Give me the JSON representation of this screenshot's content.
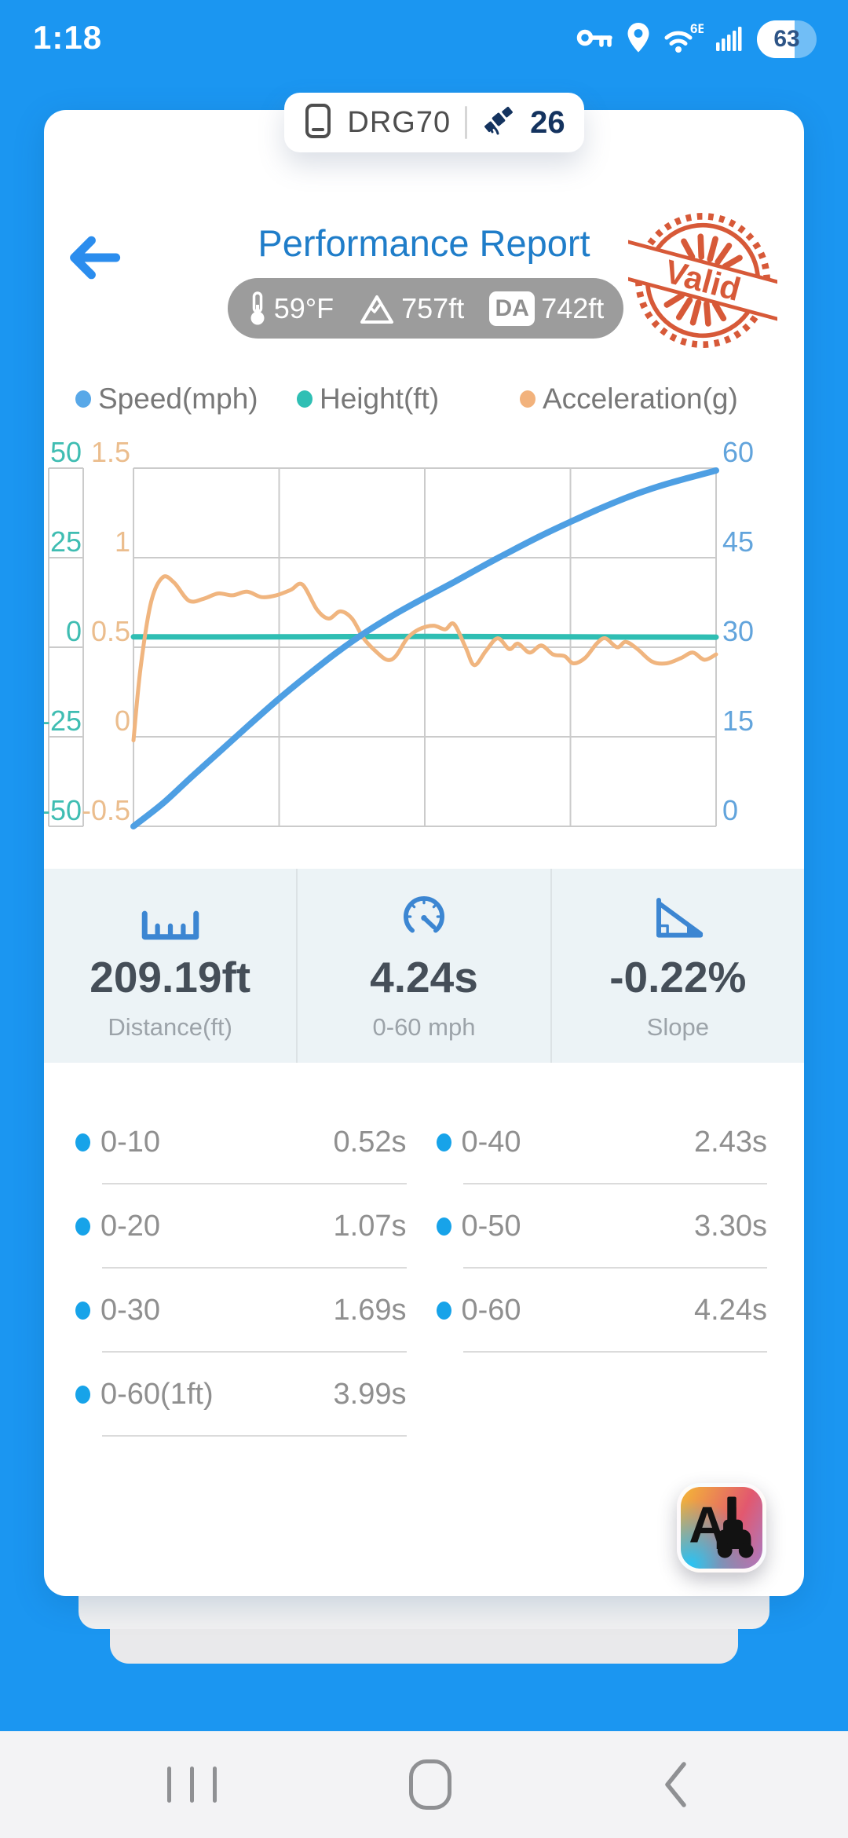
{
  "colors": {
    "background_blue": "#1B96F1",
    "title_blue": "#1f7dc9",
    "speed_blue": "#4E9FE3",
    "height_teal": "#2FBEB3",
    "acceleration_orange": "#F0B57F",
    "stamp_red": "#D5512E",
    "stat_icon_blue": "#3C86D2",
    "bullet_blue": "#17A3E9",
    "grid_gray": "#CBCBCB"
  },
  "status_bar": {
    "time": "1:18",
    "battery_percent": "63",
    "wifi_badge": "6E"
  },
  "device_pill": {
    "device_name": "DRG70",
    "satellite_count": "26"
  },
  "header": {
    "title": "Performance Report",
    "stamp_text": "Valid"
  },
  "conditions": {
    "temperature": "59°F",
    "altitude": "757ft",
    "da_badge": "DA",
    "density_altitude": "742ft"
  },
  "legend": [
    {
      "label": "Speed(mph)",
      "color": "#58A8E8"
    },
    {
      "label": "Height(ft)",
      "color": "#2FBFB4"
    },
    {
      "label": "Acceleration(g)",
      "color": "#F2B27C"
    }
  ],
  "chart_data": {
    "type": "line",
    "title": "",
    "xlabel": "",
    "x_range": [
      0,
      1
    ],
    "x_gridlines": 4,
    "grid": true,
    "axes": {
      "height_left": {
        "color": "#3FBDB2",
        "ticks": [
          50,
          25,
          0,
          -25,
          -50
        ],
        "range": [
          -50,
          50
        ]
      },
      "acceleration_left": {
        "color": "#EBBD8D",
        "ticks": [
          1.5,
          1,
          0.5,
          0,
          -0.5
        ],
        "range": [
          -0.5,
          1.5
        ]
      },
      "speed_right": {
        "color": "#62A4DC",
        "ticks": [
          60,
          45,
          30,
          15,
          0
        ],
        "range": [
          0,
          60
        ]
      }
    },
    "series": [
      {
        "name": "Height(ft)",
        "axis": "height_left",
        "color": "#2FBEB3",
        "width": 7,
        "points": [
          [
            0,
            2.9
          ],
          [
            0.25,
            2.9
          ],
          [
            0.5,
            3.0
          ],
          [
            0.75,
            2.9
          ],
          [
            1,
            2.8
          ]
        ]
      },
      {
        "name": "Acceleration(g)",
        "axis": "acceleration_left",
        "color": "#F0B57F",
        "width": 5,
        "points": [
          [
            0,
            -0.02
          ],
          [
            0.012,
            0.38
          ],
          [
            0.03,
            0.75
          ],
          [
            0.05,
            0.89
          ],
          [
            0.07,
            0.86
          ],
          [
            0.095,
            0.76
          ],
          [
            0.12,
            0.77
          ],
          [
            0.145,
            0.8
          ],
          [
            0.17,
            0.79
          ],
          [
            0.195,
            0.81
          ],
          [
            0.22,
            0.78
          ],
          [
            0.245,
            0.79
          ],
          [
            0.27,
            0.82
          ],
          [
            0.29,
            0.85
          ],
          [
            0.315,
            0.71
          ],
          [
            0.335,
            0.66
          ],
          [
            0.355,
            0.7
          ],
          [
            0.375,
            0.66
          ],
          [
            0.395,
            0.55
          ],
          [
            0.415,
            0.48
          ],
          [
            0.435,
            0.43
          ],
          [
            0.45,
            0.45
          ],
          [
            0.47,
            0.55
          ],
          [
            0.49,
            0.6
          ],
          [
            0.515,
            0.62
          ],
          [
            0.535,
            0.6
          ],
          [
            0.55,
            0.63
          ],
          [
            0.57,
            0.5
          ],
          [
            0.585,
            0.4
          ],
          [
            0.605,
            0.48
          ],
          [
            0.625,
            0.55
          ],
          [
            0.645,
            0.49
          ],
          [
            0.66,
            0.52
          ],
          [
            0.68,
            0.47
          ],
          [
            0.7,
            0.51
          ],
          [
            0.72,
            0.46
          ],
          [
            0.74,
            0.45
          ],
          [
            0.755,
            0.41
          ],
          [
            0.775,
            0.44
          ],
          [
            0.795,
            0.52
          ],
          [
            0.81,
            0.55
          ],
          [
            0.83,
            0.5
          ],
          [
            0.845,
            0.53
          ],
          [
            0.865,
            0.49
          ],
          [
            0.89,
            0.42
          ],
          [
            0.915,
            0.41
          ],
          [
            0.94,
            0.44
          ],
          [
            0.96,
            0.47
          ],
          [
            0.98,
            0.43
          ],
          [
            1,
            0.46
          ]
        ]
      },
      {
        "name": "Speed(mph)",
        "axis": "speed_right",
        "color": "#4E9FE3",
        "width": 8,
        "points": [
          [
            0,
            0
          ],
          [
            0.05,
            3.8
          ],
          [
            0.1,
            8.3
          ],
          [
            0.15,
            12.7
          ],
          [
            0.2,
            17.1
          ],
          [
            0.25,
            21.4
          ],
          [
            0.3,
            25.4
          ],
          [
            0.35,
            29.2
          ],
          [
            0.4,
            32.6
          ],
          [
            0.45,
            35.6
          ],
          [
            0.5,
            38.3
          ],
          [
            0.55,
            40.9
          ],
          [
            0.6,
            43.6
          ],
          [
            0.65,
            46.2
          ],
          [
            0.7,
            48.7
          ],
          [
            0.75,
            51.0
          ],
          [
            0.8,
            53.2
          ],
          [
            0.85,
            55.2
          ],
          [
            0.9,
            56.9
          ],
          [
            0.95,
            58.3
          ],
          [
            1,
            59.6
          ]
        ]
      }
    ]
  },
  "stats": [
    {
      "icon": "ruler-icon",
      "value": "209.19ft",
      "label": "Distance(ft)"
    },
    {
      "icon": "gauge-icon",
      "value": "4.24s",
      "label": "0-60 mph"
    },
    {
      "icon": "slope-icon",
      "value": "-0.22%",
      "label": "Slope"
    }
  ],
  "splits": {
    "rows": [
      [
        {
          "label": "0-10",
          "value": "0.52s"
        },
        {
          "label": "0-40",
          "value": "2.43s"
        }
      ],
      [
        {
          "label": "0-20",
          "value": "1.07s"
        },
        {
          "label": "0-50",
          "value": "3.30s"
        }
      ],
      [
        {
          "label": "0-30",
          "value": "1.69s"
        },
        {
          "label": "0-60",
          "value": "4.24s"
        }
      ],
      [
        {
          "label": "0-60(1ft)",
          "value": "3.99s"
        },
        null
      ]
    ]
  },
  "ai_button": {
    "label": "AI"
  }
}
